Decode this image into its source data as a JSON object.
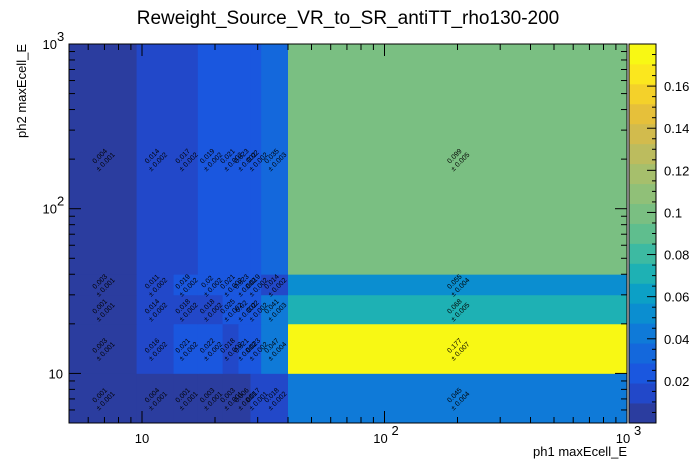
{
  "chart_data": {
    "type": "heatmap",
    "title": "Reweight_Source_VR_to_SR_antiTT_rho130-200",
    "xlabel": "ph1 maxEcell_E",
    "ylabel": "ph2 maxEcell_E",
    "x_scale": "log",
    "y_scale": "log",
    "xlim": [
      5,
      1000
    ],
    "ylim": [
      5,
      1000
    ],
    "x_tick_labels": [
      "10",
      "10",
      "10"
    ],
    "x_tick_exponents": [
      "",
      "2",
      "3"
    ],
    "x_tick_values": [
      10,
      100,
      1000
    ],
    "y_tick_labels": [
      "10",
      "10",
      "10"
    ],
    "y_tick_exponents": [
      "",
      "2",
      "3"
    ],
    "y_tick_values": [
      10,
      100,
      1000
    ],
    "x_bin_edges": [
      5,
      9.5,
      13.5,
      17,
      21.5,
      25,
      28,
      31,
      40,
      1000
    ],
    "y_bin_edges": [
      5,
      10,
      20,
      30,
      40,
      1000
    ],
    "values": [
      [
        0.001,
        0.004,
        0.001,
        0.003,
        0.003,
        0.006,
        0.017,
        0.018,
        0.045
      ],
      [
        0.003,
        0.016,
        0.021,
        0.022,
        0.018,
        0.021,
        0.023,
        0.047,
        0.177
      ],
      [
        0.001,
        0.014,
        0.018,
        0.018,
        0.025,
        0.02,
        0.02,
        0.041,
        0.068
      ],
      [
        0.003,
        0.011,
        0.019,
        0.02,
        0.021,
        0.023,
        0.019,
        0.014,
        0.055
      ],
      [
        0.004,
        0.014,
        0.017,
        0.019,
        0.021,
        0.023,
        0.02,
        0.035,
        0.099
      ]
    ],
    "errors": [
      [
        0.001,
        0.001,
        0.001,
        0.001,
        0.001,
        0.001,
        0.001,
        0.002,
        0.004
      ],
      [
        0.001,
        0.002,
        0.002,
        0.002,
        0.002,
        0.002,
        0.002,
        0.004,
        0.007
      ],
      [
        0.001,
        0.002,
        0.002,
        0.002,
        0.002,
        0.002,
        0.002,
        0.003,
        0.005
      ],
      [
        0.001,
        0.002,
        0.002,
        0.002,
        0.002,
        0.002,
        0.002,
        0.002,
        0.004
      ],
      [
        0.001,
        0.002,
        0.002,
        0.002,
        0.002,
        0.002,
        0.002,
        0.003,
        0.005
      ]
    ],
    "colorbar": {
      "zlim": [
        0,
        0.18
      ],
      "tick_values": [
        0.02,
        0.04,
        0.06,
        0.08,
        0.1,
        0.12,
        0.14,
        0.16
      ],
      "tick_labels": [
        "0.02",
        "0.04",
        "0.06",
        "0.08",
        "0.1",
        "0.12",
        "0.14",
        "0.16"
      ],
      "palette": [
        "#2b3d9f",
        "#2248c9",
        "#1a57df",
        "#1468dc",
        "#0f7ad8",
        "#0b8ed0",
        "#0ca0c6",
        "#1eb1b4",
        "#3dbaa2",
        "#5fbe8e",
        "#7abf82",
        "#90c078",
        "#a6bf6c",
        "#bcbc5e",
        "#d2bb4d",
        "#e6c03a",
        "#f4d12a",
        "#fbe71e",
        "#f8f814"
      ]
    },
    "grid": false,
    "legend": "none"
  }
}
